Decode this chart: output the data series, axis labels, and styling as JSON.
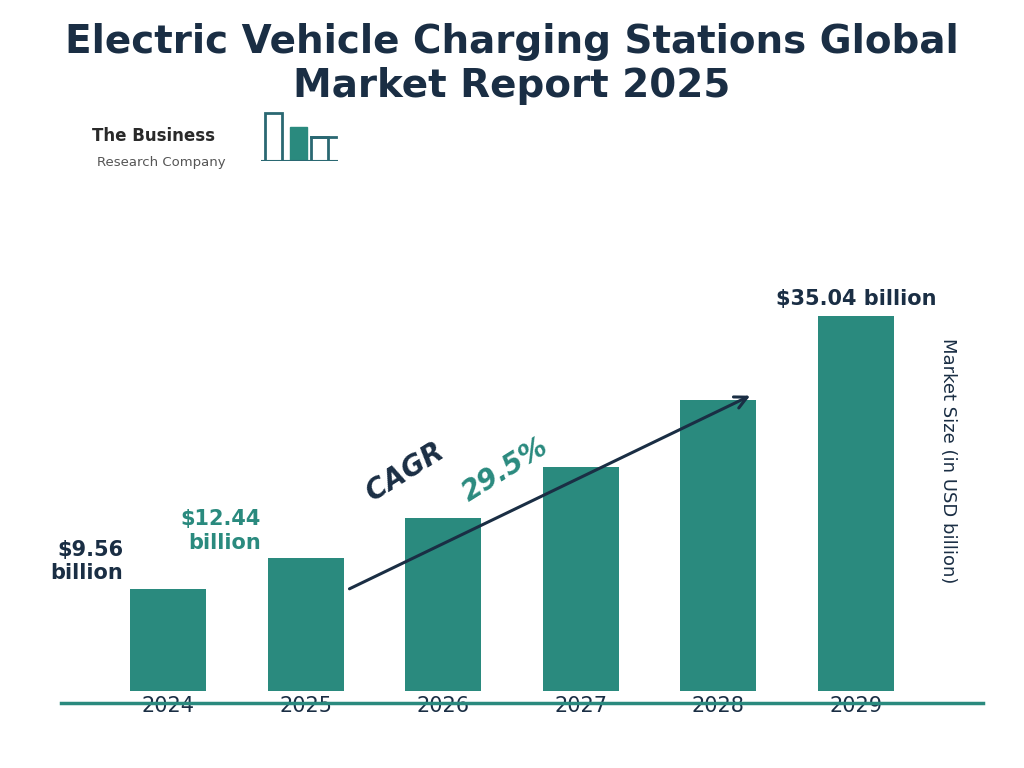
{
  "title": "Electric Vehicle Charging Stations Global\nMarket Report 2025",
  "title_color": "#1a2e44",
  "title_fontsize": 28,
  "title_fontweight": "bold",
  "years": [
    "2024",
    "2025",
    "2026",
    "2027",
    "2028",
    "2029"
  ],
  "values": [
    9.56,
    12.44,
    16.14,
    20.96,
    27.19,
    35.04
  ],
  "bar_color": "#2a8a7e",
  "ylabel": "Market Size (in USD billion)",
  "ylabel_fontsize": 13,
  "cagr_label": "CAGR ",
  "cagr_value": "29.5%",
  "cagr_label_color": "#1a2e44",
  "cagr_value_color": "#2a8a7e",
  "cagr_fontsize": 20,
  "label_2024": "$9.56\nbillion",
  "label_2025": "$12.44\nbillion",
  "label_2029": "$35.04 billion",
  "label_2024_color": "#1a2e44",
  "label_2025_color": "#2a8a7e",
  "label_2029_color": "#1a2e44",
  "background_color": "#ffffff",
  "bottom_line_color": "#2a8a7e",
  "ylim": [
    0,
    43
  ],
  "logo_text1": "The Business",
  "logo_text2": "Research Company",
  "logo_color1": "#2a2a2a",
  "logo_color2": "#555555",
  "logo_bar_fill": "#2a8a7e",
  "logo_bar_outline": "#2a6872"
}
